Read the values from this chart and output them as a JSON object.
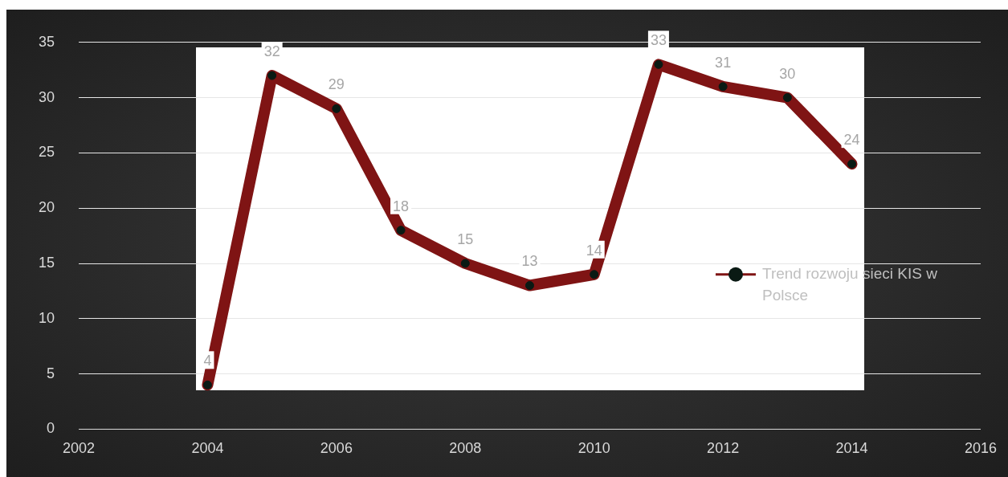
{
  "chart_data": {
    "type": "line",
    "x": [
      2004,
      2005,
      2006,
      2007,
      2008,
      2009,
      2010,
      2011,
      2012,
      2013,
      2014
    ],
    "series": [
      {
        "name": "Trend rozwoju sieci KIS w Polsce",
        "color": "#7f1414",
        "values": [
          4,
          32,
          29,
          18,
          15,
          13,
          14,
          33,
          31,
          30,
          24
        ]
      }
    ],
    "xlim": [
      2002,
      2016
    ],
    "xticks": [
      2002,
      2004,
      2006,
      2008,
      2010,
      2012,
      2014,
      2016
    ],
    "ylim": [
      0,
      35
    ],
    "yticks": [
      0,
      5,
      10,
      15,
      20,
      25,
      30,
      35
    ],
    "grid": "y",
    "legend": "right",
    "marker": "circle",
    "line_style": "solid",
    "data_labels": true
  }
}
